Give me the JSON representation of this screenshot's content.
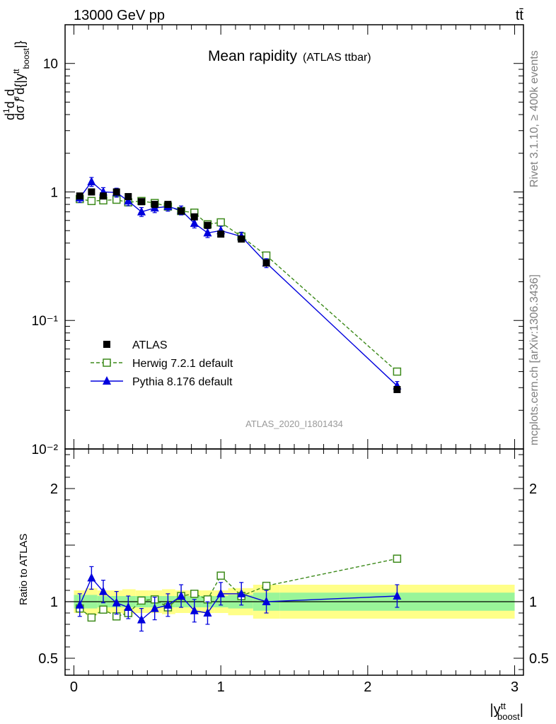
{
  "header": {
    "beam": "13000 GeV pp",
    "process": "tt̄"
  },
  "side": {
    "rivet": "Rivet 3.1.10, ≥ 400k events",
    "site": "mcplots.cern.ch [arXiv:1306.3436]"
  },
  "chart_data": [
    {
      "type": "line",
      "title": "Mean rapidity",
      "subtitle": "(ATLAS ttbar)",
      "analysis": "ATLAS_2020_I1801434",
      "ylabel": "dσ/d{|y_boost^tt|} · 1/σ · dσ^fid/d",
      "xlabel": "|y_boost^tt|",
      "yscale": "log",
      "ylim": [
        0.01,
        20
      ],
      "xlim": [
        -0.06,
        3.06
      ],
      "yticks": [
        "10⁻²",
        "10⁻¹",
        "1",
        "10"
      ],
      "xticks": [
        "0",
        "1",
        "2",
        "3"
      ],
      "legend_placement": "bottom-left",
      "series": [
        {
          "name": "ATLAS",
          "x": [
            0.04,
            0.12,
            0.2,
            0.29,
            0.37,
            0.46,
            0.55,
            0.64,
            0.73,
            0.82,
            0.91,
            1.0,
            1.14,
            1.31,
            2.2
          ],
          "y": [
            0.93,
            1.0,
            0.93,
            1.0,
            0.92,
            0.84,
            0.8,
            0.8,
            0.71,
            0.64,
            0.55,
            0.47,
            0.43,
            0.28,
            0.029
          ],
          "color": "#000000"
        },
        {
          "name": "Herwig 7.2.1 default",
          "x": [
            0.04,
            0.12,
            0.2,
            0.29,
            0.37,
            0.46,
            0.55,
            0.64,
            0.73,
            0.82,
            0.91,
            1.0,
            1.14,
            1.31,
            2.2
          ],
          "y": [
            0.88,
            0.85,
            0.86,
            0.87,
            0.83,
            0.85,
            0.82,
            0.77,
            0.71,
            0.69,
            0.56,
            0.58,
            0.45,
            0.32,
            0.04
          ],
          "color": "#3d8a1b"
        },
        {
          "name": "Pythia 8.176 default",
          "x": [
            0.04,
            0.12,
            0.2,
            0.29,
            0.37,
            0.46,
            0.55,
            0.64,
            0.73,
            0.82,
            0.91,
            1.0,
            1.14,
            1.31,
            2.2
          ],
          "y": [
            0.9,
            1.2,
            1.0,
            0.99,
            0.85,
            0.7,
            0.75,
            0.77,
            0.72,
            0.57,
            0.48,
            0.5,
            0.45,
            0.28,
            0.031
          ],
          "color": "#0000dd"
        }
      ]
    },
    {
      "type": "line",
      "ylabel": "Ratio to ATLAS",
      "xlabel": "|y_boost^tt|",
      "ylim": [
        0.35,
        2.35
      ],
      "yticks": [
        "0.5",
        "1",
        "2"
      ],
      "xticks": [
        "0",
        "1",
        "2",
        "3"
      ],
      "x_edges": [
        0.0,
        0.08,
        0.16,
        0.25,
        0.33,
        0.42,
        0.51,
        0.6,
        0.69,
        0.78,
        0.87,
        0.96,
        1.05,
        1.22,
        1.4,
        3.0
      ],
      "band_inner_half": [
        0.06,
        0.06,
        0.05,
        0.05,
        0.05,
        0.05,
        0.05,
        0.05,
        0.05,
        0.05,
        0.05,
        0.05,
        0.06,
        0.08,
        0.08
      ],
      "band_outer_half": [
        0.1,
        0.12,
        0.1,
        0.1,
        0.11,
        0.1,
        0.1,
        0.11,
        0.1,
        0.1,
        0.1,
        0.1,
        0.12,
        0.15,
        0.15
      ],
      "series": [
        {
          "name": "Herwig 7.2.1 default",
          "x": [
            0.04,
            0.12,
            0.2,
            0.29,
            0.37,
            0.46,
            0.55,
            0.64,
            0.73,
            0.82,
            0.91,
            1.0,
            1.14,
            1.31,
            2.2
          ],
          "y": [
            0.94,
            0.86,
            0.93,
            0.87,
            0.9,
            1.01,
            1.02,
            0.95,
            1.05,
            1.07,
            1.02,
            1.23,
            1.05,
            1.14,
            1.38
          ],
          "color": "#3d8a1b"
        },
        {
          "name": "Pythia 8.176 default",
          "x": [
            0.04,
            0.12,
            0.2,
            0.29,
            0.37,
            0.46,
            0.55,
            0.64,
            0.73,
            0.82,
            0.91,
            1.0,
            1.14,
            1.31,
            2.2
          ],
          "y": [
            0.97,
            1.21,
            1.09,
            0.99,
            0.95,
            0.84,
            0.94,
            0.97,
            1.05,
            0.92,
            0.9,
            1.07,
            1.07,
            1.0,
            1.05
          ],
          "color": "#0000dd"
        }
      ]
    }
  ]
}
